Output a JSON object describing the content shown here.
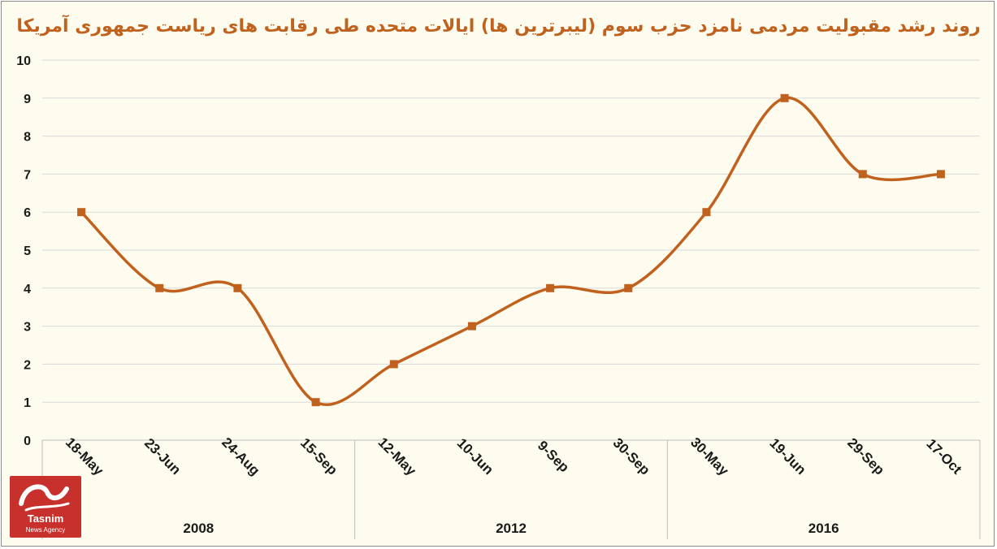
{
  "chart_data": {
    "type": "line",
    "title": "روند رشد مقبولیت مردمی نامزد حزب سوم (لیبرترین ها) ایالات متحده طی رقابت های ریاست جمهوری آمریکا",
    "categories": [
      "18-May",
      "23-Jun",
      "24-Aug",
      "15-Sep",
      "12-May",
      "10-Jun",
      "9-Sep",
      "30-Sep",
      "30-May",
      "19-Jun",
      "29-Sep",
      "17-Oct"
    ],
    "groups": [
      {
        "label": "2008",
        "count": 4
      },
      {
        "label": "2012",
        "count": 4
      },
      {
        "label": "2016",
        "count": 4
      }
    ],
    "values": [
      6,
      4,
      4,
      1,
      2,
      3,
      4,
      4,
      6,
      9,
      7,
      7
    ],
    "ylim": [
      0,
      10
    ],
    "yticks": [
      0,
      1,
      2,
      3,
      4,
      5,
      6,
      7,
      8,
      9,
      10
    ],
    "grid": true,
    "line_color": "#c0611e",
    "marker": "square",
    "background": "#fdfcee"
  },
  "logo": {
    "brand": "Tasnim",
    "sub": "News Agency",
    "color": "#c8302b"
  }
}
